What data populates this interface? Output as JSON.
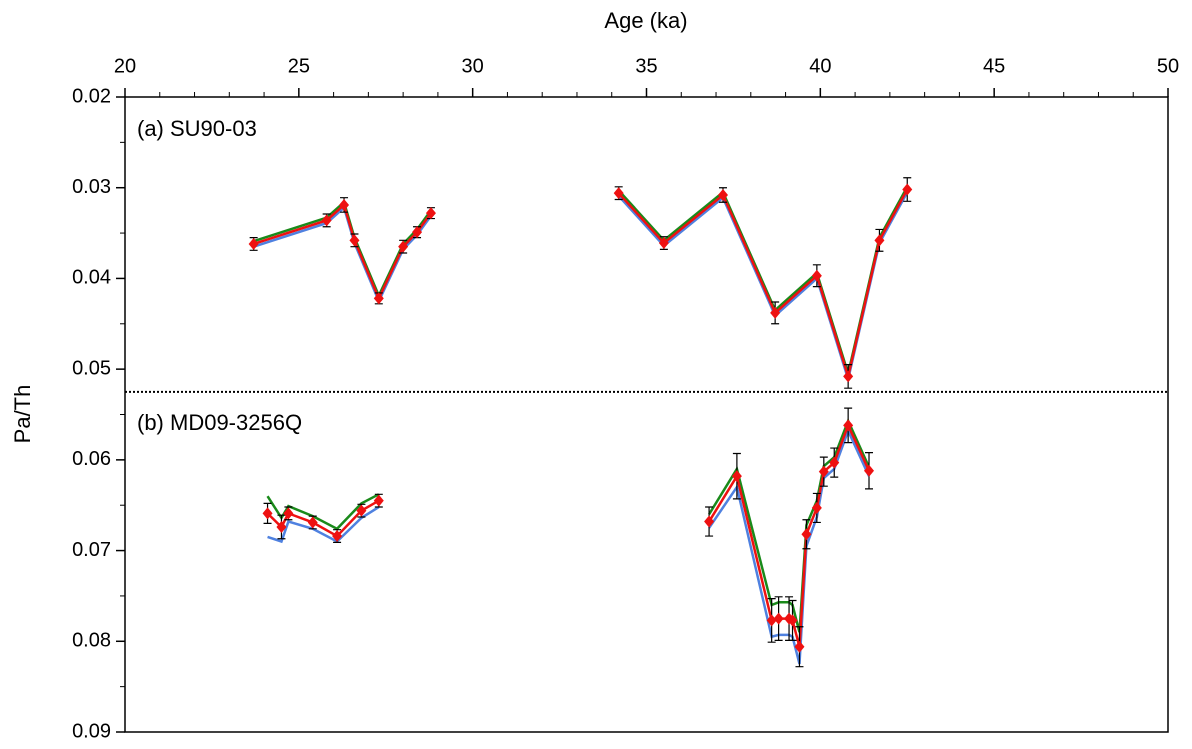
{
  "chart_data": {
    "type": "line",
    "xlabel": "Age (ka)",
    "ylabel": "Pa/Th",
    "xlim": [
      20,
      50
    ],
    "xticks": [
      20,
      25,
      30,
      35,
      40,
      45,
      50
    ],
    "xminorticks": [
      21,
      22,
      23,
      24,
      26,
      27,
      28,
      29,
      31,
      32,
      33,
      34,
      36,
      37,
      38,
      39,
      41,
      42,
      43,
      44,
      46,
      47,
      48,
      49
    ],
    "ylim": [
      0.02,
      0.09
    ],
    "yticks": [
      0.02,
      0.03,
      0.04,
      0.05,
      0.06,
      0.07,
      0.08,
      0.09
    ],
    "yminorticks": [
      0.025,
      0.035,
      0.045,
      0.055,
      0.065,
      0.075,
      0.085
    ],
    "y_inverted": true,
    "x_axis_top": true,
    "reference_line": 0.0525,
    "annotations": [
      "(a)  SU90-03",
      "(b)  MD09-3256Q"
    ],
    "series": [
      {
        "color": "#4f81e0",
        "x": [
          23.7,
          25.8,
          26.3,
          26.6,
          27.3,
          28.0,
          28.4,
          28.8,
          null,
          34.2,
          35.5,
          37.2,
          38.7,
          39.9,
          40.8,
          41.7,
          42.5,
          null,
          24.1,
          24.5,
          24.7,
          25.4,
          26.1,
          26.8,
          27.3,
          null,
          36.8,
          37.6,
          38.6,
          38.8,
          39.1,
          39.2,
          39.4,
          39.6,
          39.9,
          40.1,
          40.4,
          40.8,
          41.4
        ],
        "values": [
          0.0365,
          0.0339,
          0.0322,
          0.0361,
          0.0425,
          0.0368,
          0.0352,
          0.0331,
          null,
          0.0309,
          0.0364,
          0.0311,
          0.0441,
          0.04,
          0.0511,
          0.0361,
          0.0305,
          null,
          0.0685,
          0.069,
          0.0668,
          0.0676,
          0.069,
          0.0664,
          0.0652,
          null,
          0.0675,
          0.063,
          0.0795,
          0.0793,
          0.0793,
          0.0795,
          0.0825,
          0.0695,
          0.0663,
          0.062,
          0.061,
          0.0568,
          0.0618
        ]
      },
      {
        "color": "#1a8a1a",
        "x": [
          23.7,
          25.8,
          26.3,
          26.6,
          27.3,
          28.0,
          28.4,
          28.8,
          null,
          34.2,
          35.5,
          37.2,
          38.7,
          39.9,
          40.8,
          41.7,
          42.5,
          null,
          24.1,
          24.5,
          24.7,
          25.4,
          26.1,
          26.8,
          27.3,
          null,
          36.8,
          37.6,
          38.6,
          38.8,
          39.1,
          39.2,
          39.4,
          39.6,
          39.9,
          40.1,
          40.4,
          40.8,
          41.4
        ],
        "values": [
          0.0359,
          0.0333,
          0.0316,
          0.0355,
          0.0419,
          0.0362,
          0.0346,
          0.0325,
          null,
          0.0303,
          0.0358,
          0.0305,
          0.0435,
          0.0394,
          0.0505,
          0.0355,
          0.0299,
          null,
          0.064,
          0.0664,
          0.0651,
          0.0662,
          0.0676,
          0.0648,
          0.0638,
          null,
          0.066,
          0.061,
          0.076,
          0.0757,
          0.0757,
          0.076,
          0.079,
          0.0672,
          0.0645,
          0.0607,
          0.0597,
          0.0557,
          0.0608
        ]
      },
      {
        "color": "#ee1111",
        "marker": "diamond",
        "x": [
          23.7,
          25.8,
          26.3,
          26.6,
          27.3,
          28.0,
          28.4,
          28.8,
          null,
          34.2,
          35.5,
          37.2,
          38.7,
          39.9,
          40.8,
          41.7,
          42.5,
          null,
          24.1,
          24.5,
          24.7,
          25.4,
          26.1,
          26.8,
          27.3,
          null,
          36.8,
          37.6,
          38.6,
          38.8,
          39.1,
          39.2,
          39.4,
          39.6,
          39.9,
          40.1,
          40.4,
          40.8,
          41.4
        ],
        "values": [
          0.0362,
          0.0336,
          0.0319,
          0.0358,
          0.0422,
          0.0365,
          0.0349,
          0.0328,
          null,
          0.0306,
          0.0361,
          0.0308,
          0.0438,
          0.0397,
          0.0508,
          0.0358,
          0.0302,
          null,
          0.0659,
          0.0674,
          0.0659,
          0.0669,
          0.0684,
          0.0656,
          0.0645,
          null,
          0.0668,
          0.0618,
          0.0777,
          0.0775,
          0.0775,
          0.0777,
          0.0806,
          0.0682,
          0.0653,
          0.0613,
          0.0603,
          0.0562,
          0.0612
        ],
        "errors": [
          0.0007,
          0.0007,
          0.0008,
          0.0007,
          0.0006,
          0.0007,
          0.0006,
          0.0006,
          null,
          0.0007,
          0.0007,
          0.0008,
          0.0012,
          0.0012,
          0.0013,
          0.0012,
          0.0013,
          null,
          0.0011,
          0.0013,
          0.0007,
          0.0007,
          0.0007,
          0.0007,
          0.0007,
          null,
          0.0016,
          0.0025,
          0.0024,
          0.0024,
          0.0024,
          0.0022,
          0.0022,
          0.0016,
          0.0016,
          0.0016,
          0.0016,
          0.0019,
          0.002
        ]
      }
    ]
  }
}
